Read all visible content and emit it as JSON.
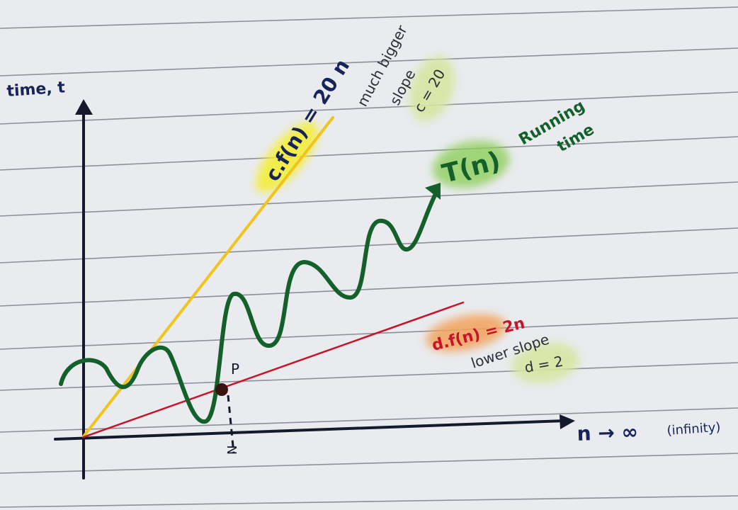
{
  "axes": {
    "y_label": "time, t",
    "x_label": "n → ∞",
    "x_note": "(infinity)"
  },
  "upper_bound": {
    "label": "c.f(n) = 20 n",
    "note_line1": "much bigger",
    "note_line2": "slope",
    "constant": "c = 20"
  },
  "running_time": {
    "label": "T(n)",
    "note_line1": "Running",
    "note_line2": "time"
  },
  "lower_bound": {
    "label": "d.f(n) = 2n",
    "note": "lower slope",
    "constant": "d = 2"
  },
  "point_label": "P",
  "threshold_label": "N",
  "colors": {
    "ink": "#141a2b",
    "yellow_line": "#f0c419",
    "red_line": "#c8142a",
    "green_curve": "#14602b",
    "highlight_yellow": "#f4ee2e",
    "highlight_green": "#8fcf5c",
    "highlight_orange": "#f3a35c",
    "highlight_pale": "#d7e6a3"
  }
}
